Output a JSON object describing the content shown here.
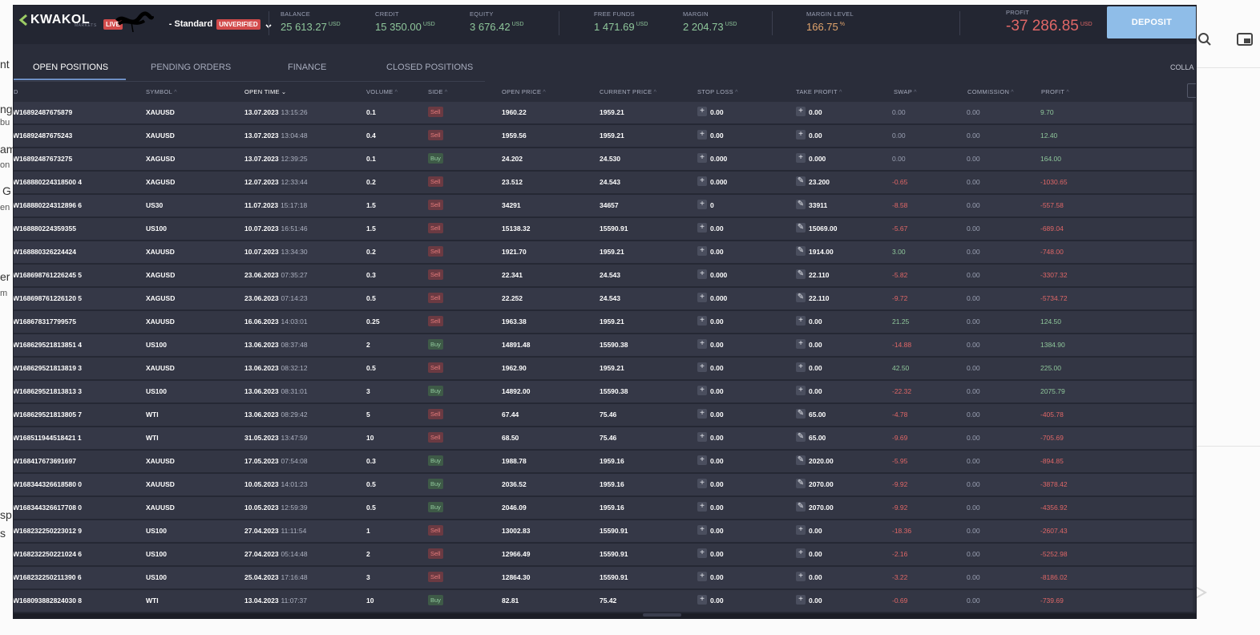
{
  "background_fragments": {
    "texts": [
      "nt",
      "ng",
      "bu",
      "am",
      "on",
      "G",
      "en",
      "er",
      "m",
      "sp",
      "s"
    ],
    "icons": [
      "search-icon",
      "picture-in-picture-icon",
      "play-arrow-icon"
    ]
  },
  "header": {
    "logo_text": "KWAKOL",
    "logo_sub": "MARKETS",
    "account_badge": "LIVE",
    "account_name": "- Standard",
    "verification_badge": "UNVERIFIED",
    "stats": {
      "balance": {
        "label": "BALANCE",
        "value": "25 613.27",
        "currency": "USD"
      },
      "credit": {
        "label": "CREDIT",
        "value": "15 350.00",
        "currency": "USD"
      },
      "equity": {
        "label": "EQUITY",
        "value": "3 676.42",
        "currency": "USD"
      },
      "free_funds": {
        "label": "FREE FUNDS",
        "value": "1 471.69",
        "currency": "USD"
      },
      "margin": {
        "label": "MARGIN",
        "value": "2 204.73",
        "currency": "USD"
      },
      "margin_level": {
        "label": "MARGIN LEVEL",
        "value": "166.75",
        "currency": "%"
      },
      "profit": {
        "label": "PROFIT",
        "value": "-37 286.85",
        "currency": "USD"
      }
    },
    "deposit_label": "DEPOSIT"
  },
  "tabs": [
    {
      "label": "OPEN POSITIONS",
      "active": true
    },
    {
      "label": "PENDING ORDERS"
    },
    {
      "label": "FINANCE"
    },
    {
      "label": "CLOSED POSITIONS"
    }
  ],
  "collapse_label": "COLLA",
  "table": {
    "headers": {
      "id": "D",
      "symbol": "SYMBOL",
      "open_time": "OPEN TIME",
      "volume": "VOLUME",
      "side": "SIDE",
      "open_price": "OPEN PRICE",
      "current_price": "CURRENT PRICE",
      "stop_loss": "STOP LOSS",
      "take_profit": "TAKE PROFIT",
      "swap": "SWAP",
      "commission": "COMMISSION",
      "profit": "PROFIT"
    },
    "rows": [
      {
        "id": "W16892487675879",
        "symbol": "XAUUSD",
        "date": "13.07.2023",
        "time": "13:15:26",
        "volume": "0.1",
        "side": "Sell",
        "open": "1960.22",
        "current": "1959.21",
        "sl_icon": "plus",
        "sl": "0.00",
        "tp_icon": "plus",
        "tp": "0.00",
        "swap": "0.00",
        "commission": "0.00",
        "profit": "9.70"
      },
      {
        "id": "W16892487675243",
        "symbol": "XAUUSD",
        "date": "13.07.2023",
        "time": "13:04:48",
        "volume": "0.4",
        "side": "Sell",
        "open": "1959.56",
        "current": "1959.21",
        "sl_icon": "plus",
        "sl": "0.00",
        "tp_icon": "plus",
        "tp": "0.00",
        "swap": "0.00",
        "commission": "0.00",
        "profit": "12.40"
      },
      {
        "id": "W16892487673275",
        "symbol": "XAGUSD",
        "date": "13.07.2023",
        "time": "12:39:25",
        "volume": "0.1",
        "side": "Buy",
        "open": "24.202",
        "current": "24.530",
        "sl_icon": "plus",
        "sl": "0.000",
        "tp_icon": "plus",
        "tp": "0.000",
        "swap": "0.00",
        "commission": "0.00",
        "profit": "164.00"
      },
      {
        "id": "W168880224318500 4",
        "symbol": "XAGUSD",
        "date": "12.07.2023",
        "time": "12:33:44",
        "volume": "0.2",
        "side": "Sell",
        "open": "23.512",
        "current": "24.543",
        "sl_icon": "plus",
        "sl": "0.000",
        "tp_icon": "pencil",
        "tp": "23.200",
        "swap": "-0.65",
        "commission": "0.00",
        "profit": "-1030.65"
      },
      {
        "id": "W168880224312896 6",
        "symbol": "US30",
        "date": "11.07.2023",
        "time": "15:17:18",
        "volume": "1.5",
        "side": "Sell",
        "open": "34291",
        "current": "34657",
        "sl_icon": "plus",
        "sl": "0",
        "tp_icon": "pencil",
        "tp": "33911",
        "swap": "-8.58",
        "commission": "0.00",
        "profit": "-557.58"
      },
      {
        "id": "W168880224359355",
        "symbol": "US100",
        "date": "10.07.2023",
        "time": "16:51:46",
        "volume": "1.5",
        "side": "Sell",
        "open": "15138.32",
        "current": "15590.91",
        "sl_icon": "plus",
        "sl": "0.00",
        "tp_icon": "pencil",
        "tp": "15069.00",
        "swap": "-5.67",
        "commission": "0.00",
        "profit": "-689.04"
      },
      {
        "id": "W168880326224424",
        "symbol": "XAUUSD",
        "date": "10.07.2023",
        "time": "13:34:30",
        "volume": "0.2",
        "side": "Sell",
        "open": "1921.70",
        "current": "1959.21",
        "sl_icon": "plus",
        "sl": "0.00",
        "tp_icon": "pencil",
        "tp": "1914.00",
        "swap": "3.00",
        "commission": "0.00",
        "profit": "-748.00"
      },
      {
        "id": "W168698761226245 5",
        "symbol": "XAGUSD",
        "date": "23.06.2023",
        "time": "07:35:27",
        "volume": "0.3",
        "side": "Sell",
        "open": "22.341",
        "current": "24.543",
        "sl_icon": "plus",
        "sl": "0.000",
        "tp_icon": "pencil",
        "tp": "22.110",
        "swap": "-5.82",
        "commission": "0.00",
        "profit": "-3307.32"
      },
      {
        "id": "W168698761226120 5",
        "symbol": "XAGUSD",
        "date": "23.06.2023",
        "time": "07:14:23",
        "volume": "0.5",
        "side": "Sell",
        "open": "22.252",
        "current": "24.543",
        "sl_icon": "plus",
        "sl": "0.000",
        "tp_icon": "pencil",
        "tp": "22.110",
        "swap": "-9.72",
        "commission": "0.00",
        "profit": "-5734.72"
      },
      {
        "id": "W168678317799575",
        "symbol": "XAUUSD",
        "date": "16.06.2023",
        "time": "14:03:01",
        "volume": "0.25",
        "side": "Sell",
        "open": "1963.38",
        "current": "1959.21",
        "sl_icon": "plus",
        "sl": "0.00",
        "tp_icon": "plus",
        "tp": "0.00",
        "swap": "21.25",
        "commission": "0.00",
        "profit": "124.50"
      },
      {
        "id": "W168629521813851 4",
        "symbol": "US100",
        "date": "13.06.2023",
        "time": "08:37:48",
        "volume": "2",
        "side": "Buy",
        "open": "14891.48",
        "current": "15590.38",
        "sl_icon": "plus",
        "sl": "0.00",
        "tp_icon": "plus",
        "tp": "0.00",
        "swap": "-14.88",
        "commission": "0.00",
        "profit": "1384.90"
      },
      {
        "id": "W168629521813819 3",
        "symbol": "XAUUSD",
        "date": "13.06.2023",
        "time": "08:32:12",
        "volume": "0.5",
        "side": "Sell",
        "open": "1962.90",
        "current": "1959.21",
        "sl_icon": "plus",
        "sl": "0.00",
        "tp_icon": "plus",
        "tp": "0.00",
        "swap": "42.50",
        "commission": "0.00",
        "profit": "225.00"
      },
      {
        "id": "W168629521813813 3",
        "symbol": "US100",
        "date": "13.06.2023",
        "time": "08:31:01",
        "volume": "3",
        "side": "Buy",
        "open": "14892.00",
        "current": "15590.38",
        "sl_icon": "plus",
        "sl": "0.00",
        "tp_icon": "plus",
        "tp": "0.00",
        "swap": "-22.32",
        "commission": "0.00",
        "profit": "2075.79"
      },
      {
        "id": "W168629521813805 7",
        "symbol": "WTI",
        "date": "13.06.2023",
        "time": "08:29:42",
        "volume": "5",
        "side": "Sell",
        "open": "67.44",
        "current": "75.46",
        "sl_icon": "plus",
        "sl": "0.00",
        "tp_icon": "pencil",
        "tp": "65.00",
        "swap": "-4.78",
        "commission": "0.00",
        "profit": "-405.78"
      },
      {
        "id": "W168511944518421 1",
        "symbol": "WTI",
        "date": "31.05.2023",
        "time": "13:47:59",
        "volume": "10",
        "side": "Sell",
        "open": "68.50",
        "current": "75.46",
        "sl_icon": "plus",
        "sl": "0.00",
        "tp_icon": "pencil",
        "tp": "65.00",
        "swap": "-9.69",
        "commission": "0.00",
        "profit": "-705.69"
      },
      {
        "id": "W168417673691697",
        "symbol": "XAUUSD",
        "date": "17.05.2023",
        "time": "07:54:08",
        "volume": "0.3",
        "side": "Buy",
        "open": "1988.78",
        "current": "1959.16",
        "sl_icon": "plus",
        "sl": "0.00",
        "tp_icon": "pencil",
        "tp": "2020.00",
        "swap": "-5.95",
        "commission": "0.00",
        "profit": "-894.85"
      },
      {
        "id": "W168344326618580 0",
        "symbol": "XAUUSD",
        "date": "10.05.2023",
        "time": "14:01:23",
        "volume": "0.5",
        "side": "Buy",
        "open": "2036.52",
        "current": "1959.16",
        "sl_icon": "plus",
        "sl": "0.00",
        "tp_icon": "pencil",
        "tp": "2070.00",
        "swap": "-9.92",
        "commission": "0.00",
        "profit": "-3878.42"
      },
      {
        "id": "W168344326617708 0",
        "symbol": "XAUUSD",
        "date": "10.05.2023",
        "time": "12:59:39",
        "volume": "0.5",
        "side": "Buy",
        "open": "2046.09",
        "current": "1959.16",
        "sl_icon": "plus",
        "sl": "0.00",
        "tp_icon": "pencil",
        "tp": "2070.00",
        "swap": "-9.92",
        "commission": "0.00",
        "profit": "-4356.92"
      },
      {
        "id": "W168232250223012 9",
        "symbol": "US100",
        "date": "27.04.2023",
        "time": "11:11:54",
        "volume": "1",
        "side": "Sell",
        "open": "13002.83",
        "current": "15590.91",
        "sl_icon": "plus",
        "sl": "0.00",
        "tp_icon": "plus",
        "tp": "0.00",
        "swap": "-18.36",
        "commission": "0.00",
        "profit": "-2607.43"
      },
      {
        "id": "W168232250221024 6",
        "symbol": "US100",
        "date": "27.04.2023",
        "time": "05:14:48",
        "volume": "2",
        "side": "Sell",
        "open": "12966.49",
        "current": "15590.91",
        "sl_icon": "plus",
        "sl": "0.00",
        "tp_icon": "plus",
        "tp": "0.00",
        "swap": "-2.16",
        "commission": "0.00",
        "profit": "-5252.98"
      },
      {
        "id": "W168232250211390 6",
        "symbol": "US100",
        "date": "25.04.2023",
        "time": "17:16:48",
        "volume": "3",
        "side": "Sell",
        "open": "12864.30",
        "current": "15590.91",
        "sl_icon": "plus",
        "sl": "0.00",
        "tp_icon": "plus",
        "tp": "0.00",
        "swap": "-3.22",
        "commission": "0.00",
        "profit": "-8186.02"
      },
      {
        "id": "W168093882824030 8",
        "symbol": "WTI",
        "date": "13.04.2023",
        "time": "11:07:37",
        "volume": "10",
        "side": "Buy",
        "open": "82.81",
        "current": "75.42",
        "sl_icon": "plus",
        "sl": "0.00",
        "tp_icon": "plus",
        "tp": "0.00",
        "swap": "-0.69",
        "commission": "0.00",
        "profit": "-739.69"
      }
    ]
  },
  "colors": {
    "accent": "#6e8fc4",
    "deposit": "#8fbde8",
    "positive": "#8fc79b",
    "negative": "#e06767",
    "warning": "#e1a46c"
  }
}
